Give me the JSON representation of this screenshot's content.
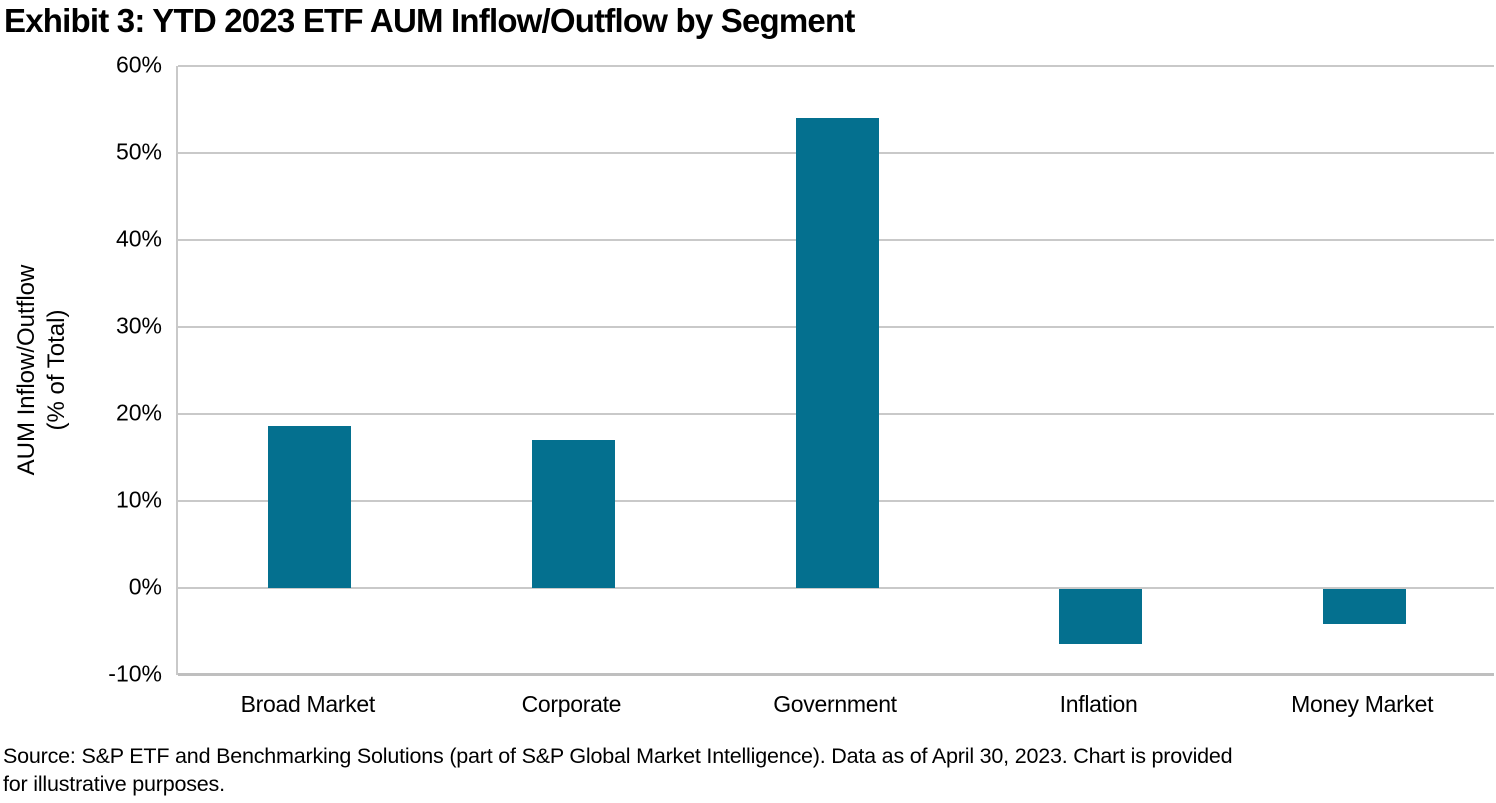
{
  "title": "Exhibit 3: YTD 2023 ETF AUM Inflow/Outflow by Segment",
  "source": {
    "line1": "Source: S&P ETF and Benchmarking Solutions (part of S&P Global Market Intelligence). Data as of April 30, 2023. Chart is provided",
    "line2": "for illustrative purposes."
  },
  "chart_data": {
    "type": "bar",
    "title": "Exhibit 3: YTD 2023 ETF AUM Inflow/Outflow by Segment",
    "categories": [
      "Broad Market",
      "Corporate",
      "Government",
      "Inflation",
      "Money Market"
    ],
    "values": [
      18.6,
      17.0,
      54.0,
      -6.3,
      -4.0
    ],
    "unit": "%",
    "xlabel": "",
    "ylabel_line1": "AUM Inflow/Outflow",
    "ylabel_line2": "(% of Total)",
    "ylim": [
      -10,
      60
    ],
    "ytick_step": 10,
    "ytick_labels": [
      "60%",
      "50%",
      "40%",
      "30%",
      "20%",
      "10%",
      "0%",
      "-10%"
    ],
    "grid": true,
    "legend": "none",
    "bar_color": "#04708F",
    "grid_color": "#C9C9C9",
    "text_color": "#000000"
  }
}
